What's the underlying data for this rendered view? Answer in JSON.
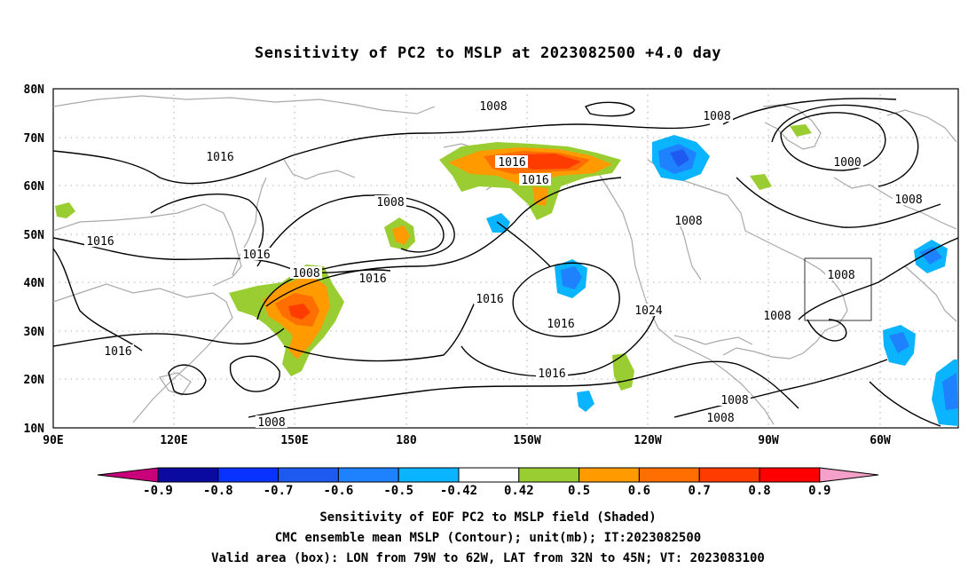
{
  "title": "Sensitivity of PC2 to MSLP at 2023082500 +4.0 day",
  "footer": {
    "line1": "Sensitivity of EOF PC2 to MSLP field (Shaded)",
    "line2": "CMC ensemble mean MSLP (Contour); unit(mb); IT:2023082500",
    "line3": "Valid area (box): LON from 79W to 62W, LAT from 32N to 45N; VT: 2023083100"
  },
  "map": {
    "lat_labels": [
      "80N",
      "70N",
      "60N",
      "50N",
      "40N",
      "30N",
      "20N",
      "10N"
    ],
    "lon_labels": [
      "90E",
      "120E",
      "150E",
      "180",
      "150W",
      "120W",
      "90W",
      "60W"
    ],
    "contour_labels": [
      "1008",
      "1008",
      "1016",
      "1016",
      "1016",
      "1008",
      "1016",
      "1016",
      "1008",
      "1016",
      "1016",
      "1008",
      "1016",
      "1024",
      "1008",
      "1008",
      "1016",
      "1016",
      "1008",
      "1008",
      "1008",
      "1000",
      "1008",
      "1016"
    ],
    "valid_box": {
      "lon_from": "79W",
      "lon_to": "62W",
      "lat_from": "32N",
      "lat_to": "45N"
    }
  },
  "colorbar": {
    "labels": [
      "-0.9",
      "-0.8",
      "-0.7",
      "-0.6",
      "-0.5",
      "-0.42",
      "0.42",
      "0.5",
      "0.6",
      "0.7",
      "0.8",
      "0.9"
    ],
    "colors": [
      "#c8007a",
      "#0a0aa0",
      "#0a32ff",
      "#1e5af0",
      "#1e82ff",
      "#0ab4ff",
      "#ffffff",
      "#9acd32",
      "#ff9b00",
      "#ff6e00",
      "#ff3c00",
      "#ff0000",
      "#f5a0c8"
    ]
  }
}
